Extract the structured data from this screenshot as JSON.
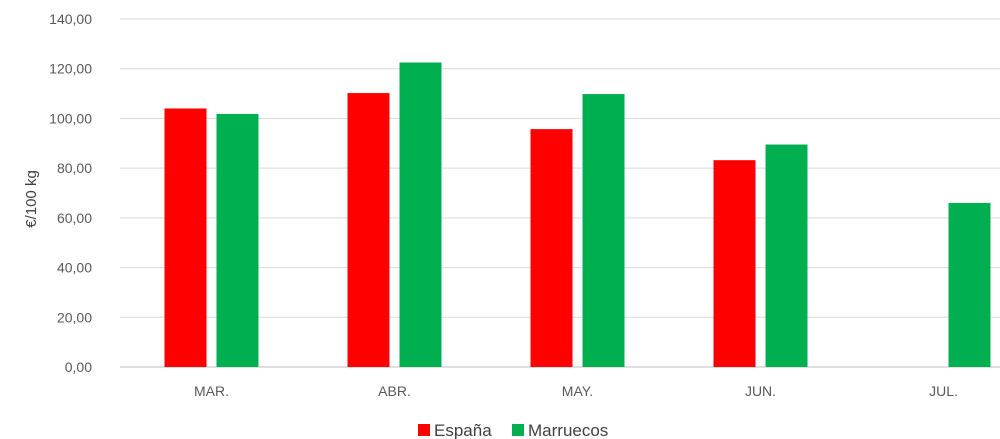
{
  "chart_data": {
    "type": "bar",
    "categories": [
      "MAR.",
      "ABR.",
      "MAY.",
      "JUN.",
      "JUL."
    ],
    "series": [
      {
        "name": "España",
        "color": "#ff0000",
        "values": [
          104.0,
          110.2,
          95.7,
          83.2,
          null
        ]
      },
      {
        "name": "Marruecos",
        "color": "#00b050",
        "values": [
          101.8,
          122.5,
          109.8,
          89.5,
          66.0
        ]
      }
    ],
    "ylabel": "€/100 kg",
    "ylim": [
      0,
      140
    ],
    "yticks": [
      "0,00",
      "20,00",
      "40,00",
      "60,00",
      "80,00",
      "100,00",
      "120,00",
      "140,00"
    ],
    "ytick_values": [
      0,
      20,
      40,
      60,
      80,
      100,
      120,
      140
    ],
    "grid": true,
    "legend_position": "bottom"
  }
}
